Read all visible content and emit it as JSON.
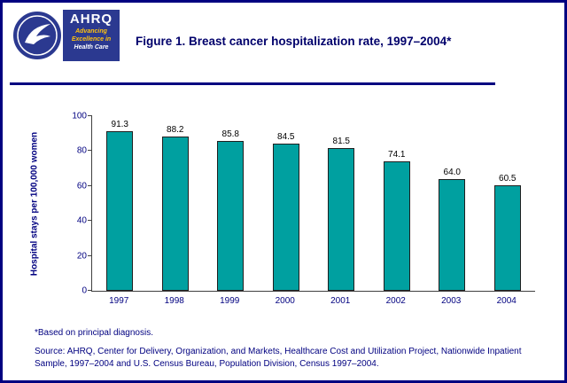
{
  "colors": {
    "navy": "#000080",
    "logo_blue": "#2B3990",
    "tagline_yellow": "#FFC20E",
    "bar_teal": "#00A0A0"
  },
  "header": {
    "title": "Figure 1. Breast cancer hospitalization rate, 1997–2004*",
    "logo": {
      "org": "AHRQ",
      "tagline_line1": "Advancing",
      "tagline_line2": "Excellence in",
      "tagline_line3": "Health Care"
    }
  },
  "chart_data": {
    "type": "bar",
    "categories": [
      "1997",
      "1998",
      "1999",
      "2000",
      "2001",
      "2002",
      "2003",
      "2004"
    ],
    "values": [
      91.3,
      88.2,
      85.8,
      84.5,
      81.5,
      74.1,
      64.0,
      60.5
    ],
    "title": "Figure 1. Breast cancer hospitalization rate, 1997–2004*",
    "xlabel": "",
    "ylabel": "Hospital stays per 100,000 women",
    "ylim": [
      0,
      100
    ],
    "yticks": [
      0,
      20,
      40,
      60,
      80,
      100
    ],
    "bar_color": "#00A0A0",
    "grid": false,
    "legend": "none"
  },
  "footnotes": {
    "note": "*Based on principal diagnosis.",
    "source": "Source: AHRQ, Center for Delivery, Organization, and Markets, Healthcare Cost and Utilization Project, Nationwide Inpatient Sample, 1997–2004 and U.S. Census Bureau, Population Division, Census 1997–2004."
  }
}
